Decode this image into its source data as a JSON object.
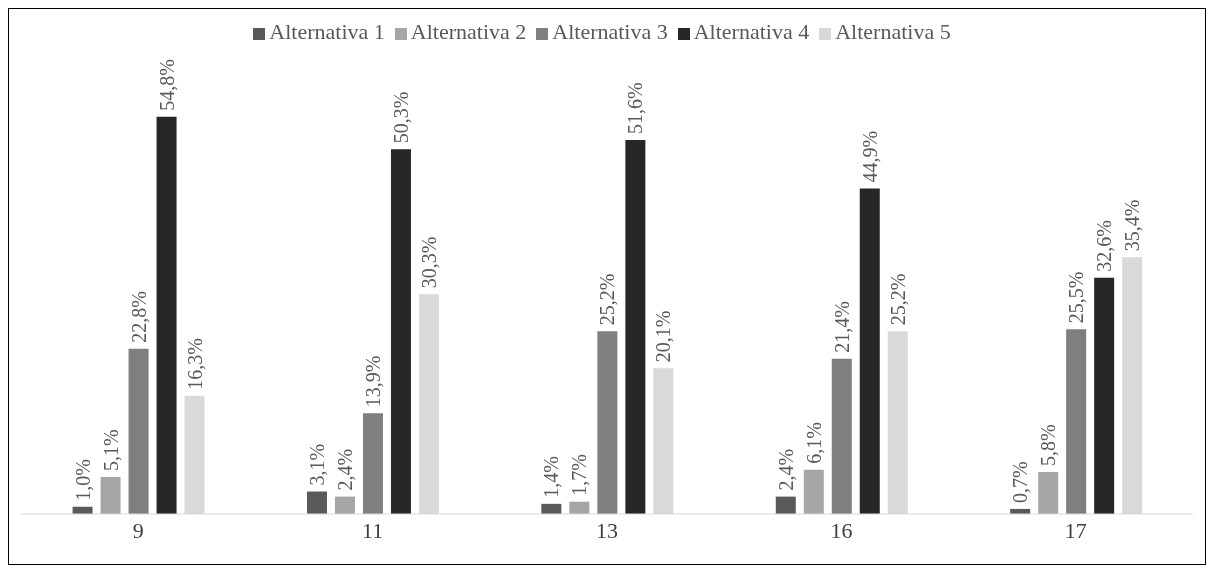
{
  "chart_data": {
    "type": "bar",
    "categories": [
      "9",
      "11",
      "13",
      "16",
      "17"
    ],
    "series": [
      {
        "name": "Alternativa 1",
        "color": "#595959",
        "values": [
          1.0,
          3.1,
          1.4,
          2.4,
          0.7
        ],
        "value_labels": [
          "1,0%",
          "3,1%",
          "1,4%",
          "2,4%",
          "0,7%"
        ]
      },
      {
        "name": "Alternativa 2",
        "color": "#a6a6a6",
        "values": [
          5.1,
          2.4,
          1.7,
          6.1,
          5.8
        ],
        "value_labels": [
          "5,1%",
          "2,4%",
          "1,7%",
          "6,1%",
          "5,8%"
        ]
      },
      {
        "name": "Alternativa 3",
        "color": "#7f7f7f",
        "values": [
          22.8,
          13.9,
          25.2,
          21.4,
          25.5
        ],
        "value_labels": [
          "22,8%",
          "13,9%",
          "25,2%",
          "21,4%",
          "25,5%"
        ]
      },
      {
        "name": "Alternativa 4",
        "color": "#262626",
        "values": [
          54.8,
          50.3,
          51.6,
          44.9,
          32.6
        ],
        "value_labels": [
          "54,8%",
          "50,3%",
          "51,6%",
          "44,9%",
          "32,6%"
        ]
      },
      {
        "name": "Alternativa 5",
        "color": "#d9d9d9",
        "values": [
          16.3,
          30.3,
          20.1,
          25.2,
          35.4
        ],
        "value_labels": [
          "16,3%",
          "30,3%",
          "20,1%",
          "25,2%",
          "35,4%"
        ]
      }
    ],
    "legend": "top",
    "grid": false
  }
}
